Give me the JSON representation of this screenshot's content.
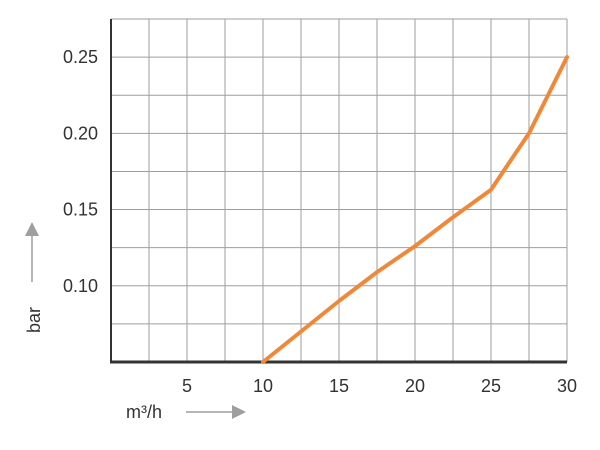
{
  "chart_data": {
    "type": "line",
    "title": "",
    "xlabel": "m³/h",
    "ylabel": "bar",
    "xlim": [
      0,
      30
    ],
    "ylim": [
      0.05,
      0.275
    ],
    "x_ticks": [
      5,
      10,
      15,
      20,
      25,
      30
    ],
    "y_ticks": [
      0.1,
      0.15,
      0.2,
      0.25
    ],
    "x_tick_labels": [
      "5",
      "10",
      "15",
      "20",
      "25",
      "30"
    ],
    "y_tick_labels": [
      "0.10",
      "0.15",
      "0.20",
      "0.25"
    ],
    "grid": true,
    "x_grid_step": 2.5,
    "y_grid_step": 0.025,
    "colors": {
      "series": "#f0883a",
      "axis": "#333333",
      "grid": "#9e9e9e",
      "arrow": "#9e9e9e"
    },
    "series": [
      {
        "x": [
          10,
          12.5,
          15,
          17.5,
          20,
          22.5,
          25,
          27.5,
          30
        ],
        "y": [
          0.05,
          0.07,
          0.09,
          0.109,
          0.126,
          0.145,
          0.163,
          0.2,
          0.25
        ]
      }
    ]
  }
}
